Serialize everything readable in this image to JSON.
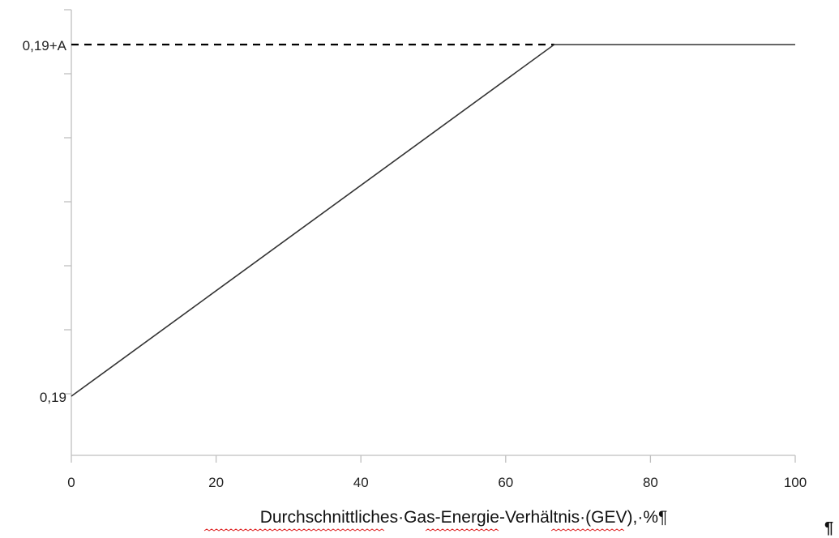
{
  "chart_data": {
    "type": "line",
    "xlabel": "Durchschnittliches·Gas-Energie-Verhältnis·(GEV),·%¶",
    "ylabel": "",
    "xlim": [
      0,
      100
    ],
    "ylim": [
      0,
      1
    ],
    "x_ticks": [
      0,
      20,
      40,
      60,
      80,
      100
    ],
    "y_tick_labels": [
      "0,19",
      "0,19+A"
    ],
    "series": [
      {
        "x": [
          0,
          66.7,
          100
        ],
        "y": [
          0,
          1,
          1
        ],
        "style": "solid",
        "color": "#333333"
      }
    ],
    "reference_lines": [
      {
        "orientation": "horizontal",
        "y": 1,
        "x_range": [
          0,
          66.7
        ],
        "style": "dashed",
        "color": "#000000"
      }
    ],
    "grid": false,
    "legend": "none"
  },
  "stray_mark": "¶"
}
